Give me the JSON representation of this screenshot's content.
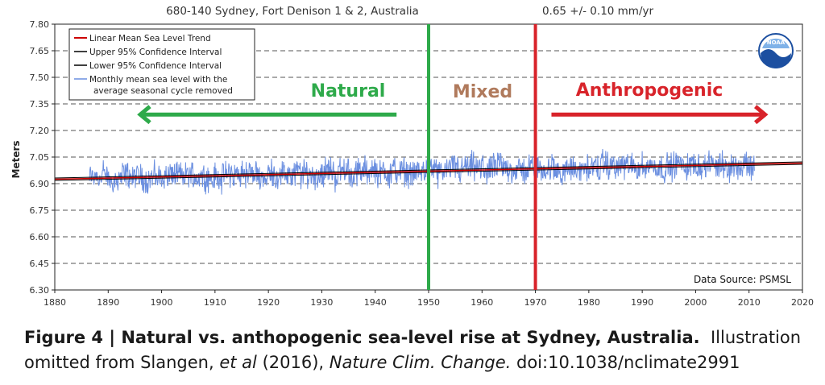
{
  "header": {
    "station": "680-140 Sydney, Fort Denison 1 & 2, Australia",
    "trend": "0.65 +/-  0.10 mm/yr"
  },
  "chart_data": {
    "type": "line",
    "ylabel": "Meters",
    "xlabel": "",
    "xlim": [
      1880,
      2020
    ],
    "ylim": [
      6.3,
      7.8
    ],
    "xticks": [
      "1880",
      "1890",
      "1900",
      "1910",
      "1920",
      "1930",
      "1940",
      "1950",
      "1960",
      "1970",
      "1980",
      "1990",
      "2000",
      "2010",
      "2020"
    ],
    "yticks": [
      "6.30",
      "6.45",
      "6.60",
      "6.75",
      "6.90",
      "7.05",
      "7.20",
      "7.35",
      "7.50",
      "7.65",
      "7.80"
    ],
    "grid": true,
    "legend_position": "top-left",
    "legend": [
      {
        "label": "Linear Mean Sea Level Trend",
        "color": "#cc0000"
      },
      {
        "label": "Upper 95% Confidence Interval",
        "color": "#000000"
      },
      {
        "label": "Lower 95% Confidence Interval",
        "color": "#000000"
      },
      {
        "label": "Monthly mean sea level with the",
        "label2": "average seasonal cycle removed",
        "color": "#6b8fe0"
      }
    ],
    "series": [
      {
        "name": "Linear Mean Sea Level Trend",
        "x": [
          1880,
          2020
        ],
        "y": [
          6.925,
          7.016
        ]
      },
      {
        "name": "Monthly mean sea level",
        "x_start": 1886.5,
        "x_end": 2011.0,
        "points_per_year": 12,
        "baseline_at_1880": 6.925,
        "trend_per_year": 0.00065,
        "approx_range": [
          6.8,
          7.15
        ]
      }
    ],
    "markers": [
      {
        "x": 1950,
        "color": "#2eaa4a",
        "label": "Mixed"
      },
      {
        "x": 1970,
        "color": "#d8232a"
      }
    ],
    "annotations": [
      {
        "text": "Natural",
        "color": "#2eaa4a",
        "arrow": "left",
        "arrow_x": [
          1896,
          1944
        ]
      },
      {
        "text": "Mixed",
        "color": "#b07a5c"
      },
      {
        "text": "Anthropogenic",
        "color": "#d8232a",
        "arrow": "right",
        "arrow_x": [
          1973,
          2013
        ]
      }
    ],
    "source": "Data Source: PSMSL",
    "logo_text": "NOAA"
  },
  "caption": {
    "label": "Figure 4 | Natural vs. anthopogenic sea-level rise at Sydney, Australia.",
    "text1": "Illustration omitted from Slangen, ",
    "etal": "et al",
    "text2": " (2016), ",
    "journal": "Nature Clim. Change.",
    "doi": " doi:10.1038/nclimate2991"
  }
}
